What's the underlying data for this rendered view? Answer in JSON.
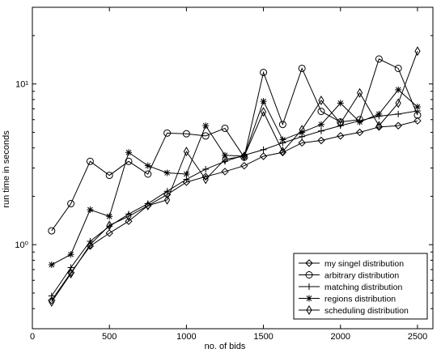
{
  "chart_data": {
    "type": "line",
    "title": "",
    "xlabel": "no. of bids",
    "ylabel": "run time in seconds",
    "xlim": [
      0,
      2600
    ],
    "ylim": [
      0.3,
      30
    ],
    "yscale": "log",
    "grid": false,
    "legend_position": "bottom-right",
    "x_ticks": [
      {
        "value": 0,
        "label": "0"
      },
      {
        "value": 500,
        "label": "500"
      },
      {
        "value": 1000,
        "label": "1000"
      },
      {
        "value": 1500,
        "label": "1500"
      },
      {
        "value": 2000,
        "label": "2000"
      },
      {
        "value": 2500,
        "label": "2500"
      }
    ],
    "y_ticks": [
      {
        "value": 1,
        "label": "10⁰"
      },
      {
        "value": 10,
        "label": "10¹"
      }
    ],
    "x": [
      125,
      250,
      375,
      500,
      625,
      750,
      875,
      1000,
      1125,
      1250,
      1375,
      1500,
      1625,
      1750,
      1875,
      2000,
      2125,
      2250,
      2375,
      2500
    ],
    "series": [
      {
        "name": "my singel distribution",
        "marker": "diamond",
        "values": [
          0.45,
          0.67,
          0.98,
          1.18,
          1.4,
          1.75,
          2.05,
          2.45,
          2.65,
          2.85,
          3.1,
          3.55,
          3.75,
          4.3,
          4.45,
          4.75,
          5.0,
          5.4,
          5.5,
          5.9
        ]
      },
      {
        "name": "arbitrary distribution",
        "marker": "circle",
        "values": [
          1.22,
          1.8,
          3.3,
          2.7,
          3.3,
          2.75,
          4.95,
          4.9,
          4.75,
          5.3,
          3.5,
          11.8,
          5.6,
          12.5,
          6.75,
          5.8,
          6.0,
          14.3,
          12.5,
          6.4
        ]
      },
      {
        "name": "matching distribution",
        "marker": "plus",
        "values": [
          0.48,
          0.72,
          1.05,
          1.3,
          1.55,
          1.8,
          2.15,
          2.55,
          2.95,
          3.3,
          3.6,
          3.9,
          4.3,
          4.7,
          5.1,
          5.5,
          5.9,
          6.3,
          6.5,
          6.8
        ]
      },
      {
        "name": "regions distribution",
        "marker": "asterisk",
        "values": [
          0.75,
          0.87,
          1.65,
          1.5,
          3.75,
          3.1,
          2.8,
          2.75,
          5.5,
          3.6,
          3.55,
          7.8,
          4.5,
          5.0,
          5.6,
          7.6,
          5.8,
          6.5,
          9.2,
          7.2
        ]
      },
      {
        "name": "scheduling distribution",
        "marker": "thin-diamond",
        "values": [
          0.44,
          0.66,
          1.0,
          1.32,
          1.5,
          1.75,
          1.9,
          3.8,
          2.55,
          3.4,
          3.55,
          6.7,
          3.8,
          5.2,
          7.9,
          5.7,
          8.8,
          5.5,
          7.6,
          16.0
        ]
      }
    ]
  }
}
